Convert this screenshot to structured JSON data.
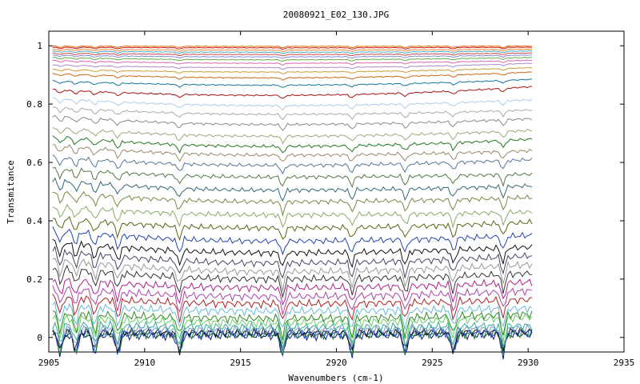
{
  "chart_data": {
    "type": "line",
    "title": "20080921_E02_130.JPG",
    "xlabel": "Wavenumbers (cm-1)",
    "ylabel": "Transmitance",
    "xlim": [
      2905,
      2935
    ],
    "ylim": [
      -0.05,
      1.05
    ],
    "x_data_range": [
      2905.2,
      2930.2
    ],
    "xticks": [
      2905,
      2910,
      2915,
      2920,
      2925,
      2930,
      2935
    ],
    "yticks": [
      0,
      0.2,
      0.4,
      0.6,
      0.8,
      1
    ],
    "ytick_labels": [
      "0",
      "0.2",
      "0.4",
      "0.6",
      "0.8",
      "1"
    ],
    "grid": false,
    "legend": "none",
    "dip_positions": [
      2905.6,
      2906.4,
      2907.4,
      2908.6,
      2911.8,
      2917.2,
      2920.8,
      2923.6,
      2926.1,
      2928.7
    ],
    "series": [
      {
        "color": "#0a1a8a",
        "start": 0.008,
        "mid": 0.006,
        "end": 0.01
      },
      {
        "color": "#1c8a2a",
        "start": 0.012,
        "mid": 0.01,
        "end": 0.013
      },
      {
        "color": "#2244cc",
        "start": 0.016,
        "mid": 0.013,
        "end": 0.017
      },
      {
        "color": "#111111",
        "start": 0.019,
        "mid": 0.016,
        "end": 0.02
      },
      {
        "color": "#7799cc",
        "start": 0.03,
        "mid": 0.025,
        "end": 0.03
      },
      {
        "color": "#33aa99",
        "start": 0.045,
        "mid": 0.035,
        "end": 0.04
      },
      {
        "color": "#66cc66",
        "start": 0.07,
        "mid": 0.05,
        "end": 0.07
      },
      {
        "color": "#338822",
        "start": 0.085,
        "mid": 0.065,
        "end": 0.08
      },
      {
        "color": "#66bbdd",
        "start": 0.11,
        "mid": 0.09,
        "end": 0.1
      },
      {
        "color": "#aa2222",
        "start": 0.14,
        "mid": 0.115,
        "end": 0.13
      },
      {
        "color": "#aa44aa",
        "start": 0.17,
        "mid": 0.14,
        "end": 0.16
      },
      {
        "color": "#aa2288",
        "start": 0.2,
        "mid": 0.17,
        "end": 0.19
      },
      {
        "color": "#333333",
        "start": 0.24,
        "mid": 0.2,
        "end": 0.22
      },
      {
        "color": "#999999",
        "start": 0.27,
        "mid": 0.225,
        "end": 0.25
      },
      {
        "color": "#444466",
        "start": 0.3,
        "mid": 0.255,
        "end": 0.28
      },
      {
        "color": "#111111",
        "start": 0.33,
        "mid": 0.29,
        "end": 0.31
      },
      {
        "color": "#2244aa",
        "start": 0.37,
        "mid": 0.33,
        "end": 0.35
      },
      {
        "color": "#556611",
        "start": 0.41,
        "mid": 0.375,
        "end": 0.395
      },
      {
        "color": "#88aa66",
        "start": 0.45,
        "mid": 0.42,
        "end": 0.43
      },
      {
        "color": "#778844",
        "start": 0.5,
        "mid": 0.465,
        "end": 0.48
      },
      {
        "color": "#336677",
        "start": 0.54,
        "mid": 0.505,
        "end": 0.52
      },
      {
        "color": "#557744",
        "start": 0.58,
        "mid": 0.55,
        "end": 0.56
      },
      {
        "color": "#557799",
        "start": 0.62,
        "mid": 0.59,
        "end": 0.61
      },
      {
        "color": "#998866",
        "start": 0.66,
        "mid": 0.625,
        "end": 0.64
      },
      {
        "color": "#227722",
        "start": 0.69,
        "mid": 0.655,
        "end": 0.68
      },
      {
        "color": "#99aa77",
        "start": 0.72,
        "mid": 0.69,
        "end": 0.71
      },
      {
        "color": "#888888",
        "start": 0.76,
        "mid": 0.73,
        "end": 0.75
      },
      {
        "color": "#aaaaaa",
        "start": 0.79,
        "mid": 0.765,
        "end": 0.78
      },
      {
        "color": "#aaccee",
        "start": 0.82,
        "mid": 0.795,
        "end": 0.815
      },
      {
        "color": "#aa1111",
        "start": 0.85,
        "mid": 0.83,
        "end": 0.86
      },
      {
        "color": "#117799",
        "start": 0.88,
        "mid": 0.865,
        "end": 0.885
      },
      {
        "color": "#cc6611",
        "start": 0.905,
        "mid": 0.89,
        "end": 0.91
      },
      {
        "color": "#cc9933",
        "start": 0.92,
        "mid": 0.91,
        "end": 0.925
      },
      {
        "color": "#aa88cc",
        "start": 0.935,
        "mid": 0.925,
        "end": 0.94
      },
      {
        "color": "#dd66aa",
        "start": 0.95,
        "mid": 0.94,
        "end": 0.95
      },
      {
        "color": "#66aa44",
        "start": 0.96,
        "mid": 0.952,
        "end": 0.96
      },
      {
        "color": "#8888dd",
        "start": 0.968,
        "mid": 0.962,
        "end": 0.968
      },
      {
        "color": "#cc4444",
        "start": 0.975,
        "mid": 0.97,
        "end": 0.975
      },
      {
        "color": "#44aacc",
        "start": 0.982,
        "mid": 0.978,
        "end": 0.982
      },
      {
        "color": "#ee8833",
        "start": 0.988,
        "mid": 0.985,
        "end": 0.988
      },
      {
        "color": "#cc2222",
        "start": 0.995,
        "mid": 0.993,
        "end": 0.995
      },
      {
        "color": "#dd6600",
        "start": 0.999,
        "mid": 0.998,
        "end": 0.999
      }
    ]
  }
}
